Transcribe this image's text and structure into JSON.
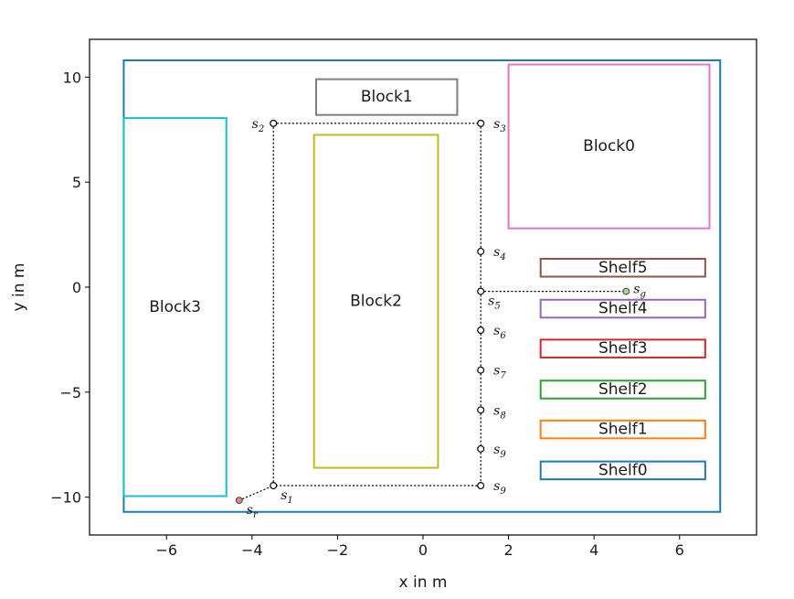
{
  "axes": {
    "xlabel": "x in m",
    "ylabel": "y in m",
    "xlim": [
      -7.8,
      7.8
    ],
    "ylim": [
      -11.8,
      11.8
    ],
    "xticks": [
      -6,
      -4,
      -2,
      0,
      2,
      4,
      6
    ],
    "yticks": [
      -10,
      -5,
      0,
      5,
      10
    ],
    "grid": false
  },
  "chart_data": {
    "type": "diagram",
    "boundary": {
      "x": [
        -7.0,
        6.95
      ],
      "y": [
        -10.7,
        10.8
      ],
      "color": "#1f77b4"
    },
    "rectangles": [
      {
        "name": "Block1",
        "x": [
          -2.5,
          0.8
        ],
        "y": [
          8.2,
          9.9
        ],
        "color": "#7f7f7f"
      },
      {
        "name": "Block0",
        "x": [
          2.0,
          6.7
        ],
        "y": [
          2.8,
          10.6
        ],
        "color": "#e377c2"
      },
      {
        "name": "Block2",
        "x": [
          -2.55,
          0.35
        ],
        "y": [
          -8.6,
          7.25
        ],
        "color": "#bcbd22"
      },
      {
        "name": "Block3",
        "x": [
          -7.0,
          -4.6
        ],
        "y": [
          -9.95,
          8.05
        ],
        "color": "#17becf"
      },
      {
        "name": "Shelf5",
        "x": [
          2.75,
          6.6
        ],
        "y": [
          0.5,
          1.35
        ],
        "color": "#8c564b"
      },
      {
        "name": "Shelf4",
        "x": [
          2.75,
          6.6
        ],
        "y": [
          -1.45,
          -0.6
        ],
        "color": "#9467bd"
      },
      {
        "name": "Shelf3",
        "x": [
          2.75,
          6.6
        ],
        "y": [
          -3.35,
          -2.5
        ],
        "color": "#d62728"
      },
      {
        "name": "Shelf2",
        "x": [
          2.75,
          6.6
        ],
        "y": [
          -5.3,
          -4.45
        ],
        "color": "#2ca02c"
      },
      {
        "name": "Shelf1",
        "x": [
          2.75,
          6.6
        ],
        "y": [
          -7.2,
          -6.35
        ],
        "color": "#ff7f0e"
      },
      {
        "name": "Shelf0",
        "x": [
          2.75,
          6.6
        ],
        "y": [
          -9.15,
          -8.3
        ],
        "color": "#1f77b4"
      }
    ],
    "waypoints": [
      {
        "id": "r",
        "base": "s",
        "sub": "r",
        "x": -4.3,
        "y": -10.15,
        "fill": "#f08080",
        "label_pos": "below-right"
      },
      {
        "id": "1",
        "base": "s",
        "sub": "1",
        "x": -3.5,
        "y": -9.45,
        "fill": "#ffffff",
        "label_pos": "below-right"
      },
      {
        "id": "2",
        "base": "s",
        "sub": "2",
        "x": -3.5,
        "y": 7.8,
        "fill": "#ffffff",
        "label_pos": "left"
      },
      {
        "id": "3",
        "base": "s",
        "sub": "3",
        "x": 1.35,
        "y": 7.8,
        "fill": "#ffffff",
        "label_pos": "right"
      },
      {
        "id": "4",
        "base": "s",
        "sub": "4",
        "x": 1.35,
        "y": 1.7,
        "fill": "#ffffff",
        "label_pos": "right"
      },
      {
        "id": "5",
        "base": "s",
        "sub": "5",
        "x": 1.35,
        "y": -0.2,
        "fill": "#ffffff",
        "label_pos": "below-right"
      },
      {
        "id": "6",
        "base": "s",
        "sub": "6",
        "x": 1.35,
        "y": -2.05,
        "fill": "#ffffff",
        "label_pos": "right"
      },
      {
        "id": "7",
        "base": "s",
        "sub": "7",
        "x": 1.35,
        "y": -3.95,
        "fill": "#ffffff",
        "label_pos": "right"
      },
      {
        "id": "8",
        "base": "s",
        "sub": "8",
        "x": 1.35,
        "y": -5.85,
        "fill": "#ffffff",
        "label_pos": "right"
      },
      {
        "id": "9a",
        "base": "s",
        "sub": "9",
        "x": 1.35,
        "y": -7.7,
        "fill": "#ffffff",
        "label_pos": "right"
      },
      {
        "id": "9b",
        "base": "s",
        "sub": "9",
        "x": 1.35,
        "y": -9.45,
        "fill": "#ffffff",
        "label_pos": "right"
      },
      {
        "id": "g",
        "base": "s",
        "sub": "g",
        "x": 4.75,
        "y": -0.2,
        "fill": "#98df8a",
        "label_pos": "right"
      }
    ],
    "path": [
      {
        "from": "r",
        "to": "1"
      },
      {
        "from": "1",
        "to": "2"
      },
      {
        "from": "2",
        "to": "3"
      },
      {
        "from": "3",
        "to": "4"
      },
      {
        "from": "4",
        "to": "5"
      },
      {
        "from": "5",
        "to": "6"
      },
      {
        "from": "6",
        "to": "7"
      },
      {
        "from": "7",
        "to": "8"
      },
      {
        "from": "8",
        "to": "9a"
      },
      {
        "from": "9a",
        "to": "9b"
      },
      {
        "from": "9b",
        "to": "1"
      },
      {
        "from": "5",
        "to": "g"
      }
    ]
  }
}
